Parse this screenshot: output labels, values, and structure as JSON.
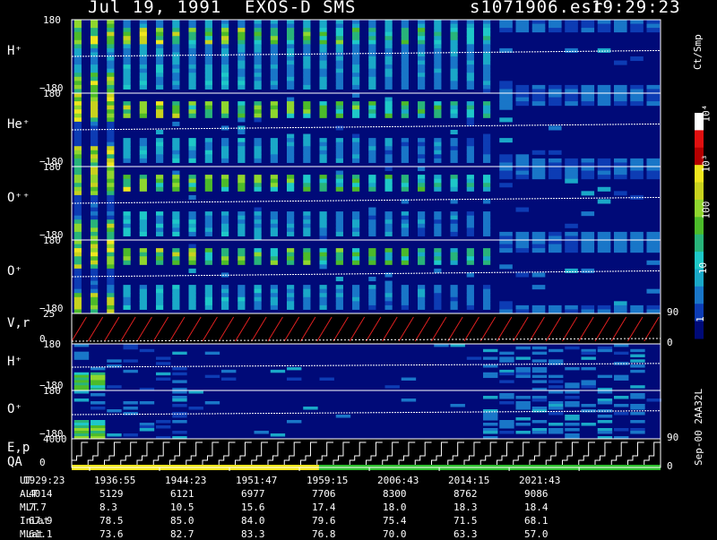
{
  "header": {
    "date": "Jul 19, 1991",
    "instrument": "EXOS-D SMS",
    "file": "s1071906.esr",
    "time": "19:29:23"
  },
  "colorbar": {
    "unit": "Ct/Smp",
    "labels": [
      "1",
      "10",
      "100",
      "10³",
      "10⁴"
    ],
    "colors": [
      "#000a78",
      "#0d3cb4",
      "#1976c8",
      "#1aa8c8",
      "#1ec8c8",
      "#28b47a",
      "#4cbb2a",
      "#8fd62e",
      "#c8d21e",
      "#f0e61e",
      "#b40000",
      "#e01010",
      "#ffffff"
    ]
  },
  "chart_data": {
    "type": "heatmap",
    "panels": [
      {
        "label": "H⁺",
        "y_top": "180",
        "y_bottom": "−180"
      },
      {
        "label": "He⁺",
        "y_top": "180",
        "y_bottom": "−180"
      },
      {
        "label": "O⁺⁺",
        "y_top": "180",
        "y_bottom": "−180"
      },
      {
        "label": "O⁺",
        "y_top": "180",
        "y_bottom": "−180",
        "right_tick": "90"
      },
      {
        "label": "V,r",
        "y_top": "25",
        "y_bottom": "0",
        "right_tick": "0"
      },
      {
        "label": "H⁺",
        "y_top": "180",
        "y_bottom": "−180"
      },
      {
        "label": "O⁺",
        "y_top": "180",
        "y_bottom": "−180",
        "right_tick": "90"
      },
      {
        "label": "E,p",
        "label2": "QA",
        "y_top": "4000",
        "y_bottom": "0",
        "right_tick": "0"
      }
    ],
    "spin_count": 36,
    "ut_axis": [
      {
        "name": "UT",
        "values": [
          "1929:23",
          "1936:55",
          "1944:23",
          "1951:47",
          "1959:15",
          "2006:43",
          "2014:15",
          "2021:43"
        ]
      },
      {
        "name": "ALT",
        "values": [
          "4014",
          "5129",
          "6121",
          "6977",
          "7706",
          "8300",
          "8762",
          "9086"
        ]
      },
      {
        "name": "MLT",
        "values": [
          "7.7",
          "8.3",
          "10.5",
          "15.6",
          "17.4",
          "18.0",
          "18.3",
          "18.4"
        ]
      },
      {
        "name": "InLat",
        "values": [
          "67.9",
          "78.5",
          "85.0",
          "84.0",
          "79.6",
          "75.4",
          "71.5",
          "68.1"
        ]
      },
      {
        "name": "MLat",
        "values": [
          "61.1",
          "73.6",
          "82.7",
          "83.3",
          "76.8",
          "70.0",
          "63.3",
          "57.0"
        ]
      }
    ],
    "footer_right": "Sep-00 2AA32L"
  }
}
